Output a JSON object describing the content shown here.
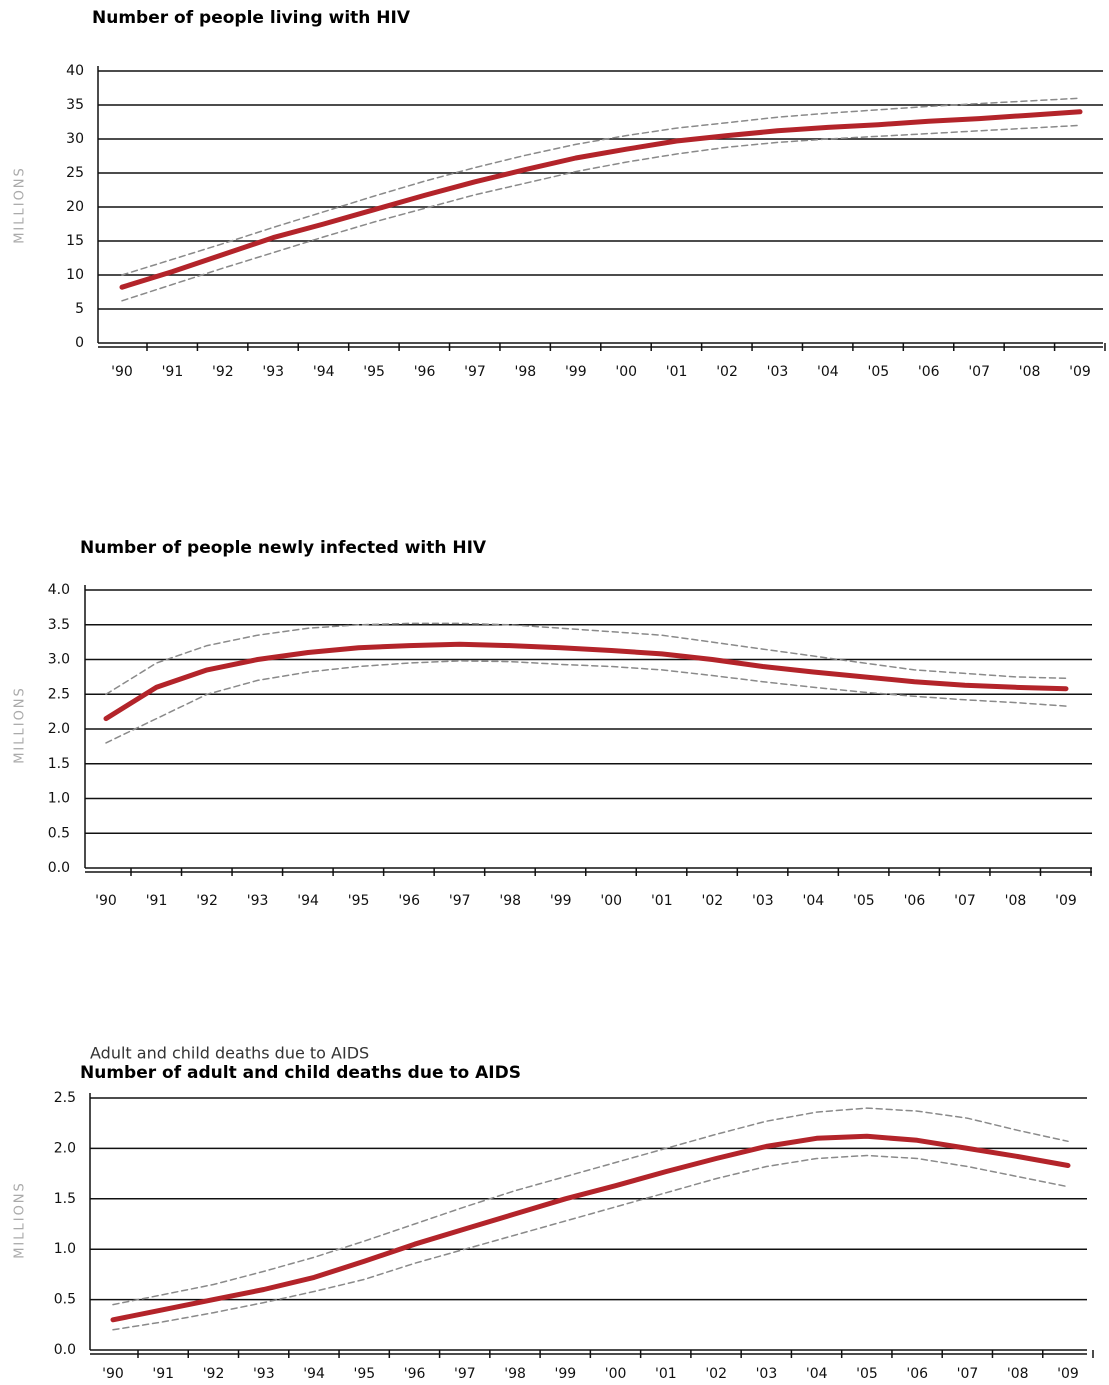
{
  "chart_data": [
    {
      "type": "line",
      "title": "Number of people living  with HIV",
      "ylabel": "MILLIONS",
      "categories": [
        "'90",
        "'91",
        "'92",
        "'93",
        "'94",
        "'95",
        "'96",
        "'97",
        "'98",
        "'99",
        "'00",
        "'01",
        "'02",
        "'03",
        "'04",
        "'05",
        "'06",
        "'07",
        "'08",
        "'09"
      ],
      "series": [
        {
          "color": "#8a8a8a",
          "line_style": "dashed",
          "values": [
            10,
            12.3,
            14.6,
            17,
            19.3,
            21.6,
            23.8,
            25.8,
            27.6,
            29.2,
            30.5,
            31.6,
            32.4,
            33.2,
            33.8,
            34.3,
            34.8,
            35.2,
            35.6,
            36
          ]
        },
        {
          "color": "#8a8a8a",
          "line_style": "dashed",
          "values": [
            6.2,
            8.6,
            11,
            13.3,
            15.6,
            17.8,
            19.8,
            21.8,
            23.5,
            25.2,
            26.6,
            27.8,
            28.8,
            29.5,
            30,
            30.4,
            30.8,
            31.2,
            31.6,
            32
          ]
        },
        {
          "color": "#b3242a",
          "line_style": "solid",
          "values": [
            8.2,
            10.5,
            13,
            15.5,
            17.5,
            19.6,
            21.7,
            23.7,
            25.5,
            27.2,
            28.5,
            29.7,
            30.5,
            31.2,
            31.7,
            32.1,
            32.6,
            33,
            33.5,
            34
          ]
        }
      ],
      "ylim": [
        0,
        40
      ],
      "yticks": [
        0,
        5,
        10,
        15,
        20,
        25,
        30,
        35,
        40
      ],
      "grid": true
    },
    {
      "type": "line",
      "title": "Number of people newly infected with HIV",
      "ylabel": "MILLIONS",
      "categories": [
        "'90",
        "'91",
        "'92",
        "'93",
        "'94",
        "'95",
        "'96",
        "'97",
        "'98",
        "'99",
        "'00",
        "'01",
        "'02",
        "'03",
        "'04",
        "'05",
        "'06",
        "'07",
        "'08",
        "'09"
      ],
      "series": [
        {
          "color": "#8a8a8a",
          "line_style": "dashed",
          "values": [
            2.5,
            2.95,
            3.2,
            3.35,
            3.45,
            3.5,
            3.52,
            3.52,
            3.5,
            3.45,
            3.4,
            3.35,
            3.25,
            3.15,
            3.05,
            2.95,
            2.85,
            2.8,
            2.75,
            2.73
          ]
        },
        {
          "color": "#8a8a8a",
          "line_style": "dashed",
          "values": [
            1.8,
            2.15,
            2.5,
            2.7,
            2.82,
            2.9,
            2.95,
            2.98,
            2.97,
            2.93,
            2.9,
            2.85,
            2.77,
            2.68,
            2.6,
            2.53,
            2.47,
            2.42,
            2.38,
            2.33
          ]
        },
        {
          "color": "#b3242a",
          "line_style": "solid",
          "values": [
            2.15,
            2.6,
            2.85,
            3.0,
            3.1,
            3.17,
            3.2,
            3.22,
            3.2,
            3.17,
            3.13,
            3.08,
            3.0,
            2.9,
            2.82,
            2.75,
            2.68,
            2.63,
            2.6,
            2.58
          ]
        }
      ],
      "ylim": [
        0,
        4
      ],
      "yticks": [
        {
          "value": 0,
          "label": "0.0"
        },
        0.5,
        {
          "value": 1,
          "label": "1.0"
        },
        1.5,
        {
          "value": 2,
          "label": "2.0"
        },
        2.5,
        {
          "value": 3,
          "label": "3.0"
        },
        3.5,
        {
          "value": 4,
          "label": "4.0"
        }
      ],
      "grid": true
    },
    {
      "type": "line",
      "title": "Number of adult and child deaths due to AIDS",
      "subtitle": "Adult and child deaths due to AIDS",
      "ylabel": "MILLIONS",
      "categories": [
        "'90",
        "'91",
        "'92",
        "'93",
        "'94",
        "'95",
        "'96",
        "'97",
        "'98",
        "'99",
        "'00",
        "'01",
        "'02",
        "'03",
        "'04",
        "'05",
        "'06",
        "'07",
        "'08",
        "'09"
      ],
      "series": [
        {
          "color": "#8a8a8a",
          "line_style": "dashed",
          "values": [
            0.45,
            0.55,
            0.65,
            0.78,
            0.92,
            1.08,
            1.25,
            1.42,
            1.58,
            1.72,
            1.86,
            2.0,
            2.14,
            2.27,
            2.36,
            2.4,
            2.37,
            2.3,
            2.18,
            2.07
          ]
        },
        {
          "color": "#8a8a8a",
          "line_style": "dashed",
          "values": [
            0.2,
            0.28,
            0.37,
            0.47,
            0.58,
            0.7,
            0.86,
            1.0,
            1.14,
            1.28,
            1.42,
            1.56,
            1.7,
            1.82,
            1.9,
            1.93,
            1.9,
            1.82,
            1.72,
            1.62
          ]
        },
        {
          "color": "#b3242a",
          "line_style": "solid",
          "values": [
            0.3,
            0.4,
            0.5,
            0.6,
            0.72,
            0.88,
            1.05,
            1.2,
            1.35,
            1.5,
            1.63,
            1.77,
            1.9,
            2.02,
            2.1,
            2.12,
            2.08,
            2.0,
            1.92,
            1.83
          ]
        }
      ],
      "ylim": [
        0,
        2.5
      ],
      "yticks": [
        {
          "value": 0,
          "label": "0.0"
        },
        0.5,
        {
          "value": 1,
          "label": "1.0"
        },
        1.5,
        {
          "value": 2,
          "label": "2.0"
        },
        2.5
      ],
      "grid": true
    }
  ]
}
